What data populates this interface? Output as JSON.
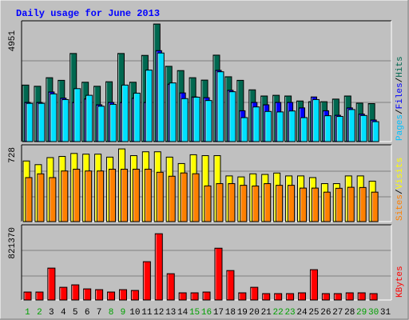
{
  "chart_data": [
    {
      "panel": "hits_files_pages",
      "type": "bar",
      "title": "Daily usage for June 2013",
      "categories": [
        "1",
        "2",
        "3",
        "4",
        "5",
        "6",
        "7",
        "8",
        "9",
        "10",
        "11",
        "12",
        "13",
        "14",
        "15",
        "16",
        "17",
        "18",
        "19",
        "20",
        "21",
        "22",
        "23",
        "24",
        "25",
        "26",
        "27",
        "28",
        "29",
        "30",
        "31"
      ],
      "weekend_days": [
        "1",
        "2",
        "8",
        "9",
        "15",
        "16",
        "22",
        "23",
        "29",
        "30"
      ],
      "ymax_label": "4951",
      "ylim": [
        0,
        4951
      ],
      "series": [
        {
          "name": "Hits",
          "color": "#006850",
          "values": [
            2380,
            2330,
            2690,
            2580,
            3710,
            2500,
            2330,
            2520,
            3710,
            2500,
            3630,
            4950,
            3170,
            2990,
            2690,
            2590,
            3640,
            2730,
            2580,
            2180,
            1920,
            1950,
            1920,
            1710,
            1680,
            1680,
            1790,
            1920,
            1620,
            1600,
            0
          ]
        },
        {
          "name": "Files",
          "color": "#0000ff",
          "values": [
            1650,
            1650,
            2090,
            1830,
            1650,
            1800,
            1550,
            1650,
            1650,
            1830,
            1650,
            3830,
            2420,
            2050,
            1880,
            1850,
            3000,
            2160,
            1300,
            1650,
            1550,
            1650,
            1650,
            1420,
            1880,
            1300,
            1110,
            1420,
            1160,
            910,
            0
          ]
        },
        {
          "name": "Pages",
          "color": "#00e0ff",
          "values": [
            1610,
            1610,
            2010,
            1770,
            2230,
            1950,
            1490,
            1570,
            2380,
            2040,
            3010,
            3730,
            2470,
            1810,
            1870,
            1730,
            2940,
            2100,
            1010,
            1460,
            1270,
            1250,
            1290,
            1010,
            1770,
            1090,
            1060,
            1350,
            1100,
            840,
            0
          ]
        }
      ]
    },
    {
      "panel": "visits_sites",
      "type": "bar",
      "categories": [
        "1",
        "2",
        "3",
        "4",
        "5",
        "6",
        "7",
        "8",
        "9",
        "10",
        "11",
        "12",
        "13",
        "14",
        "15",
        "16",
        "17",
        "18",
        "19",
        "20",
        "21",
        "22",
        "23",
        "24",
        "25",
        "26",
        "27",
        "28",
        "29",
        "30",
        "31"
      ],
      "ymax_label": "728",
      "ylim": [
        0,
        728
      ],
      "series": [
        {
          "name": "Visits",
          "color": "#ffff00",
          "values": [
            613,
            576,
            647,
            659,
            689,
            682,
            682,
            652,
            735,
            667,
            706,
            706,
            652,
            587,
            676,
            667,
            667,
            462,
            452,
            483,
            477,
            491,
            462,
            462,
            445,
            384,
            384,
            462,
            462,
            409,
            0
          ]
        },
        {
          "name": "Sites",
          "color": "#ff8000",
          "values": [
            445,
            483,
            445,
            512,
            530,
            512,
            512,
            530,
            530,
            530,
            530,
            499,
            459,
            492,
            484,
            361,
            384,
            384,
            367,
            360,
            384,
            367,
            367,
            339,
            339,
            298,
            337,
            347,
            345,
            298,
            0
          ]
        }
      ]
    },
    {
      "panel": "kbytes",
      "type": "bar",
      "categories": [
        "1",
        "2",
        "3",
        "4",
        "5",
        "6",
        "7",
        "8",
        "9",
        "10",
        "11",
        "12",
        "13",
        "14",
        "15",
        "16",
        "17",
        "18",
        "19",
        "20",
        "21",
        "22",
        "23",
        "24",
        "25",
        "26",
        "27",
        "28",
        "29",
        "30",
        "31"
      ],
      "ymax_label": "821370",
      "ylim": [
        0,
        821370
      ],
      "series": [
        {
          "name": "KBytes",
          "color": "#ff0000",
          "values": [
            91000,
            91000,
            364000,
            145000,
            173000,
            127000,
            118000,
            91000,
            118000,
            109000,
            437000,
            756000,
            300000,
            82000,
            82000,
            91000,
            591000,
            336000,
            82000,
            145000,
            73000,
            73000,
            73000,
            82000,
            346000,
            73000,
            73000,
            82000,
            82000,
            73000,
            0
          ]
        }
      ]
    }
  ],
  "legend": {
    "panel1": [
      {
        "label": "Pages",
        "color": "#00c0ff"
      },
      {
        "label": "Files",
        "color": "#0000ff"
      },
      {
        "label": "Hits",
        "color": "#006850"
      }
    ],
    "panel2": [
      {
        "label": "Sites",
        "color": "#ff8000"
      },
      {
        "label": "Visits",
        "color": "#ffff00"
      }
    ],
    "panel3": [
      {
        "label": "KBytes",
        "color": "#ff0000"
      }
    ],
    "separator": "/"
  },
  "colors": {
    "background": "#c0c0c0",
    "plot_background": "#c0c0c0",
    "title": "#0000ff",
    "weekday_label": "#000000",
    "weekend_label": "#00a000",
    "gridline": "#808080",
    "legend_separator": "#000000"
  }
}
